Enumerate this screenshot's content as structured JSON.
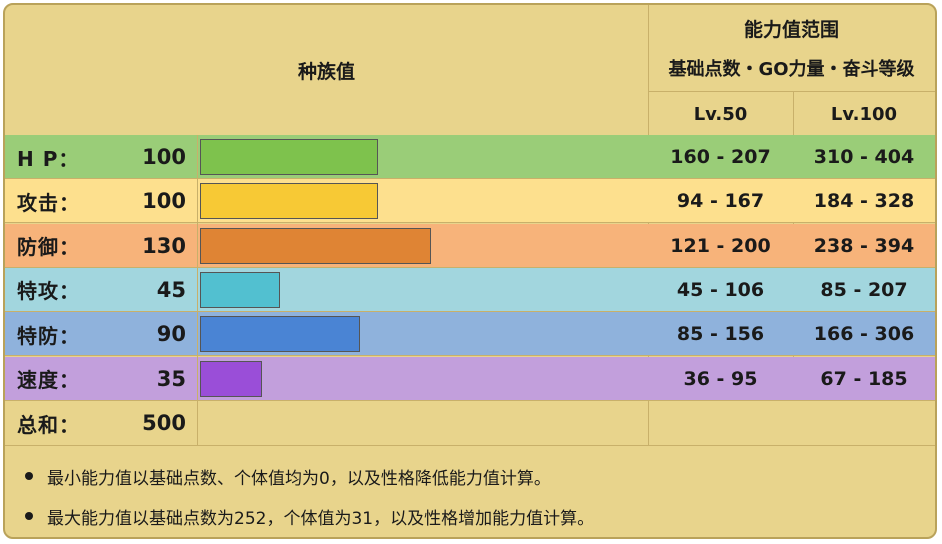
{
  "header": {
    "base_stats_title": "种族值",
    "range_title": "能力值范围",
    "range_subtitle": "基础点数・GO力量・奋斗等级",
    "lv50": "Lv.50",
    "lv100": "Lv.100"
  },
  "stats": [
    {
      "label": "H P：",
      "value": "100",
      "base": 100,
      "min50_max50": "160 - 207",
      "range100": "310 - 404",
      "row_color": "#9acd78",
      "bar_color": "#7ec24d"
    },
    {
      "label": "攻击：",
      "value": "100",
      "base": 100,
      "min50_max50": "94 - 167",
      "range100": "184 - 328",
      "row_color": "#fde08e",
      "bar_color": "#f7c935"
    },
    {
      "label": "防御：",
      "value": "130",
      "base": 130,
      "min50_max50": "121 - 200",
      "range100": "238 - 394",
      "row_color": "#f7b37a",
      "bar_color": "#df8434"
    },
    {
      "label": "特攻：",
      "value": "45",
      "base": 45,
      "min50_max50": "45 - 106",
      "range100": "85 - 207",
      "row_color": "#a2d6de",
      "bar_color": "#52c0d0"
    },
    {
      "label": "特防：",
      "value": "90",
      "base": 90,
      "min50_max50": "85 - 156",
      "range100": "166 - 306",
      "row_color": "#8fb2dc",
      "bar_color": "#4a84d4"
    },
    {
      "label": "速度：",
      "value": "35",
      "base": 35,
      "min50_max50": "36 - 95",
      "range100": "67 - 185",
      "row_color": "#c29fdc",
      "bar_color": "#9a4ed8"
    }
  ],
  "total": {
    "label": "总和：",
    "value": "500"
  },
  "notes": [
    "最小能力值以基础点数、个体值均为0，以及性格降低能力值计算。",
    "最大能力值以基础点数为252，个体值为31，以及性格增加能力值计算。"
  ]
}
